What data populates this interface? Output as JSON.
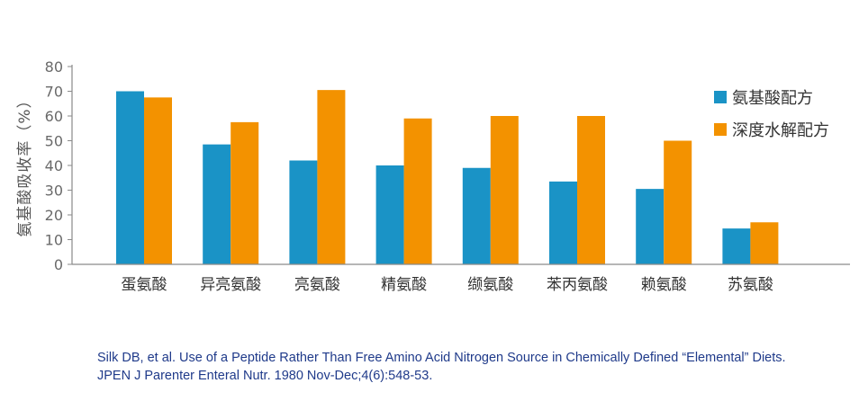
{
  "chart_data": {
    "type": "bar",
    "title": "",
    "xlabel": "",
    "ylabel": "氨基酸吸收率（%）",
    "ylim": [
      0,
      80
    ],
    "yticks": [
      0,
      10,
      20,
      30,
      40,
      50,
      60,
      70,
      80
    ],
    "categories": [
      "蛋氨酸",
      "异亮氨酸",
      "亮氨酸",
      "精氨酸",
      "缬氨酸",
      "苯丙氨酸",
      "赖氨酸",
      "苏氨酸"
    ],
    "series": [
      {
        "name": "氨基酸配方",
        "color": "#1a93c6",
        "values": [
          70,
          48.5,
          42,
          40,
          39,
          33.5,
          30.5,
          14.5
        ]
      },
      {
        "name": "深度水解配方",
        "color": "#f39200",
        "values": [
          67.5,
          57.5,
          70.5,
          59,
          60,
          60,
          50,
          17
        ]
      }
    ],
    "grid": false,
    "legend": "right"
  },
  "citation": {
    "line1": "Silk DB, et al. Use of a Peptide Rather Than Free Amino Acid Nitrogen Source in Chemically Defined “Elemental” Diets.",
    "line2": "JPEN J Parenter Enteral Nutr. 1980 Nov-Dec;4(6):548-53."
  }
}
